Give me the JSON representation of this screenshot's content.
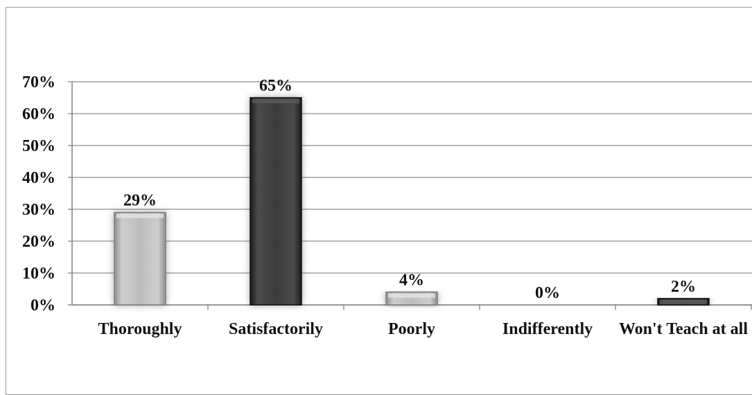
{
  "chart_data": {
    "type": "bar",
    "categories": [
      "Thoroughly",
      "Satisfactorily",
      "Poorly",
      "Indifferently",
      "Won't Teach at all"
    ],
    "values": [
      29,
      65,
      4,
      0,
      2
    ],
    "data_labels": [
      "29%",
      "65%",
      "4%",
      "0%",
      "2%"
    ],
    "y_ticks": [
      "0%",
      "10%",
      "20%",
      "30%",
      "40%",
      "50%",
      "60%",
      "70%"
    ],
    "ylim": [
      0,
      70
    ],
    "grid": true,
    "legend": "none",
    "bar_colors": [
      "#b9b9b9",
      "#3a3a3a",
      "#b5b5b5",
      "#9a9a9a",
      "#333333"
    ]
  }
}
